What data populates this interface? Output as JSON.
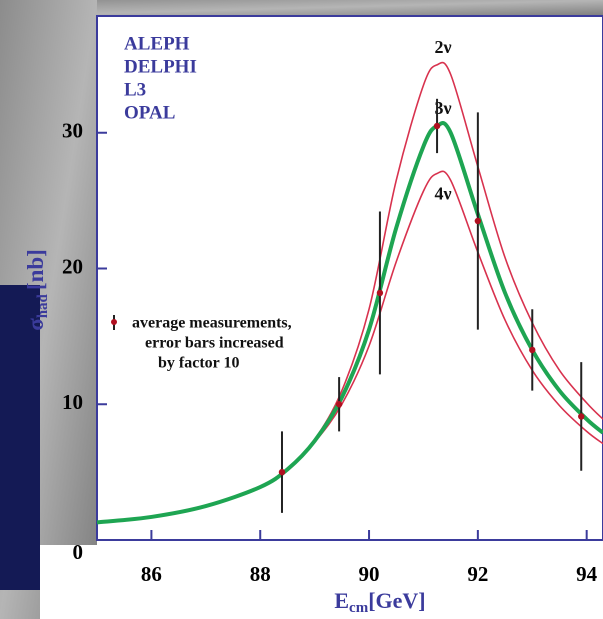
{
  "chart_data": {
    "type": "line",
    "legend_entries": [
      "ALEPH",
      "DELPHI",
      "L3",
      "OPAL"
    ],
    "ylabel": {
      "main": "σ",
      "sub": "had",
      "unit": "[nb]"
    },
    "xlabel": {
      "main": "E",
      "sub": "cm",
      "unit": "[GeV]"
    },
    "annotation": [
      "average measurements,",
      "error bars increased",
      "by factor 10"
    ],
    "xlim": [
      85,
      94.3
    ],
    "ylim": [
      0,
      38.6
    ],
    "xticks": [
      86,
      88,
      90,
      92,
      94
    ],
    "yticks": [
      0,
      10,
      20,
      30
    ],
    "x": [
      85,
      86,
      87,
      88,
      88.5,
      89,
      89.5,
      90,
      90.5,
      91,
      91.25,
      91.5,
      92,
      92.5,
      93,
      93.5,
      94,
      94.3
    ],
    "series": [
      {
        "name": "2ν",
        "color": "#d8324e",
        "values": [
          1.3,
          1.7,
          2.5,
          3.9,
          5.2,
          7.4,
          11,
          17,
          26.5,
          33.5,
          35,
          34.3,
          27.5,
          20.8,
          16,
          12.5,
          10.1,
          8.9
        ]
      },
      {
        "name": "3ν",
        "color": "#1ea552",
        "values": [
          1.3,
          1.7,
          2.5,
          3.9,
          5.2,
          7.3,
          10.5,
          15.5,
          23,
          29,
          30.5,
          30,
          24,
          18.2,
          14,
          11,
          8.9,
          7.9
        ]
      },
      {
        "name": "4ν",
        "color": "#d8324e",
        "values": [
          1.3,
          1.7,
          2.5,
          3.9,
          5.1,
          7.2,
          10,
          14.3,
          20.5,
          25.7,
          27,
          26.5,
          21.2,
          16.2,
          12.5,
          9.9,
          8,
          7.1
        ]
      }
    ],
    "measurements": {
      "color": "#b01020",
      "x": [
        88.4,
        89.45,
        90.2,
        91.25,
        92.0,
        93.0,
        93.9
      ],
      "values": [
        5.0,
        10.0,
        18.2,
        30.5,
        23.5,
        14.0,
        9.1
      ],
      "errors": [
        0.3,
        0.2,
        0.6,
        0.2,
        0.8,
        0.3,
        0.4
      ]
    }
  }
}
